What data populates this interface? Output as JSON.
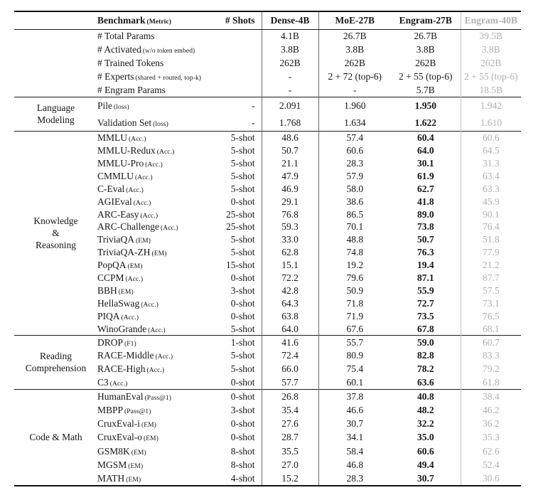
{
  "header": {
    "benchmark_label": "Benchmark",
    "benchmark_metric": "(Metric)",
    "shots_label": "# Shots",
    "models": [
      "Dense-4B",
      "MoE-27B",
      "Engram-27B",
      "Engram-40B"
    ]
  },
  "table": {
    "sections": [
      {
        "group": "",
        "css": "sec-stats",
        "emphasize": false,
        "rows": [
          {
            "name": "# Total Params",
            "metric": "",
            "shots": "",
            "values": [
              "4.1B",
              "26.7B",
              "26.7B",
              "39.5B"
            ]
          },
          {
            "name": "# Activated",
            "metric": "(w/o token embed)",
            "shots": "",
            "values": [
              "3.8B",
              "3.8B",
              "3.8B",
              "3.8B"
            ]
          },
          {
            "name": "# Trained Tokens",
            "metric": "",
            "shots": "",
            "values": [
              "262B",
              "262B",
              "262B",
              "262B"
            ]
          },
          {
            "name": "# Experts",
            "metric": "(shared + routed, top-k)",
            "shots": "",
            "values": [
              "-",
              "2 + 72 (top-6)",
              "2 + 55 (top-6)",
              "2 + 55 (top-6)"
            ]
          },
          {
            "name": "# Engram Params",
            "metric": "",
            "shots": "",
            "values": [
              "-",
              "-",
              "5.7B",
              "18.5B"
            ]
          }
        ]
      },
      {
        "group": "Language\nModeling",
        "css": "sec-lm",
        "emphasize": true,
        "rows": [
          {
            "name": "Pile",
            "metric": "(loss)",
            "shots": "-",
            "values": [
              "2.091",
              "1.960",
              "1.950",
              "1.942"
            ]
          },
          {
            "name": "Validation Set",
            "metric": "(loss)",
            "shots": "-",
            "values": [
              "1.768",
              "1.634",
              "1.622",
              "1.610"
            ]
          }
        ]
      },
      {
        "group": "Knowledge\n&\nReasoning",
        "css": "sec-kr",
        "emphasize": true,
        "rows": [
          {
            "name": "MMLU",
            "metric": "(Acc.)",
            "shots": "5-shot",
            "values": [
              "48.6",
              "57.4",
              "60.4",
              "60.6"
            ]
          },
          {
            "name": "MMLU-Redux",
            "metric": "(Acc.)",
            "shots": "5-shot",
            "values": [
              "50.7",
              "60.6",
              "64.0",
              "64.5"
            ]
          },
          {
            "name": "MMLU-Pro",
            "metric": "(Acc.)",
            "shots": "5-shot",
            "values": [
              "21.1",
              "28.3",
              "30.1",
              "31.3"
            ]
          },
          {
            "name": "CMMLU",
            "metric": "(Acc.)",
            "shots": "5-shot",
            "values": [
              "47.9",
              "57.9",
              "61.9",
              "63.4"
            ]
          },
          {
            "name": "C-Eval",
            "metric": "(Acc.)",
            "shots": "5-shot",
            "values": [
              "46.9",
              "58.0",
              "62.7",
              "63.3"
            ]
          },
          {
            "name": "AGIEval",
            "metric": "(Acc.)",
            "shots": "0-shot",
            "values": [
              "29.1",
              "38.6",
              "41.8",
              "45.9"
            ]
          },
          {
            "name": "ARC-Easy",
            "metric": "(Acc.)",
            "shots": "25-shot",
            "values": [
              "76.8",
              "86.5",
              "89.0",
              "90.1"
            ]
          },
          {
            "name": "ARC-Challenge",
            "metric": "(Acc.)",
            "shots": "25-shot",
            "values": [
              "59.3",
              "70.1",
              "73.8",
              "76.4"
            ]
          },
          {
            "name": "TriviaQA",
            "metric": "(EM)",
            "shots": "5-shot",
            "values": [
              "33.0",
              "48.8",
              "50.7",
              "51.8"
            ]
          },
          {
            "name": "TriviaQA-ZH",
            "metric": "(EM)",
            "shots": "5-shot",
            "values": [
              "62.8",
              "74.8",
              "76.3",
              "77.9"
            ]
          },
          {
            "name": "PopQA",
            "metric": "(EM)",
            "shots": "15-shot",
            "values": [
              "15.1",
              "19.2",
              "19.4",
              "21.2"
            ]
          },
          {
            "name": "CCPM",
            "metric": "(Acc.)",
            "shots": "0-shot",
            "values": [
              "72.2",
              "79.6",
              "87.1",
              "87.7"
            ]
          },
          {
            "name": "BBH",
            "metric": "(EM)",
            "shots": "3-shot",
            "values": [
              "42.8",
              "50.9",
              "55.9",
              "57.5"
            ]
          },
          {
            "name": "HellaSwag",
            "metric": "(Acc.)",
            "shots": "0-shot",
            "values": [
              "64.3",
              "71.8",
              "72.7",
              "73.1"
            ]
          },
          {
            "name": "PIQA",
            "metric": "(Acc.)",
            "shots": "0-shot",
            "values": [
              "63.8",
              "71.9",
              "73.5",
              "76.5"
            ]
          },
          {
            "name": "WinoGrande",
            "metric": "(Acc.)",
            "shots": "5-shot",
            "values": [
              "64.0",
              "67.6",
              "67.8",
              "68.1"
            ]
          }
        ]
      },
      {
        "group": "Reading\nComprehension",
        "css": "sec-rc",
        "emphasize": true,
        "rows": [
          {
            "name": "DROP",
            "metric": "(F1)",
            "shots": "1-shot",
            "values": [
              "41.6",
              "55.7",
              "59.0",
              "60.7"
            ]
          },
          {
            "name": "RACE-Middle",
            "metric": "(Acc.)",
            "shots": "5-shot",
            "values": [
              "72.4",
              "80.9",
              "82.8",
              "83.3"
            ]
          },
          {
            "name": "RACE-High",
            "metric": "(Acc.)",
            "shots": "5-shot",
            "values": [
              "66.0",
              "75.4",
              "78.2",
              "79.2"
            ]
          },
          {
            "name": "C3",
            "metric": "(Acc.)",
            "shots": "0-shot",
            "values": [
              "57.7",
              "60.1",
              "63.6",
              "61.8"
            ]
          }
        ]
      },
      {
        "group": "Code & Math",
        "css": "sec-cm",
        "emphasize": true,
        "rows": [
          {
            "name": "HumanEval",
            "metric": "(Pass@1)",
            "shots": "0-shot",
            "values": [
              "26.8",
              "37.8",
              "40.8",
              "38.4"
            ]
          },
          {
            "name": "MBPP",
            "metric": "(Pass@1)",
            "shots": "3-shot",
            "values": [
              "35.4",
              "46.6",
              "48.2",
              "46.2"
            ]
          },
          {
            "name": "CruxEval-i",
            "metric": "(EM)",
            "shots": "0-shot",
            "values": [
              "27.6",
              "30.7",
              "32.2",
              "36.2"
            ]
          },
          {
            "name": "CruxEval-o",
            "metric": "(EM)",
            "shots": "0-shot",
            "values": [
              "28.7",
              "34.1",
              "35.0",
              "35.3"
            ]
          },
          {
            "name": "GSM8K",
            "metric": "(EM)",
            "shots": "8-shot",
            "values": [
              "35.5",
              "58.4",
              "60.6",
              "62.6"
            ]
          },
          {
            "name": "MGSM",
            "metric": "(EM)",
            "shots": "8-shot",
            "values": [
              "27.0",
              "46.8",
              "49.4",
              "52.4"
            ]
          },
          {
            "name": "MATH",
            "metric": "(EM)",
            "shots": "4-shot",
            "values": [
              "15.2",
              "28.3",
              "30.7",
              "30.6"
            ]
          }
        ]
      }
    ],
    "colors": {
      "text": "#161616",
      "muted_column": "#b0b0b0",
      "rule_heavy": "#111111",
      "rule_light": "#1c1c1c",
      "vertical_rule": "#6b6b6b",
      "vertical_rule_muted": "#c4c4c4"
    }
  }
}
